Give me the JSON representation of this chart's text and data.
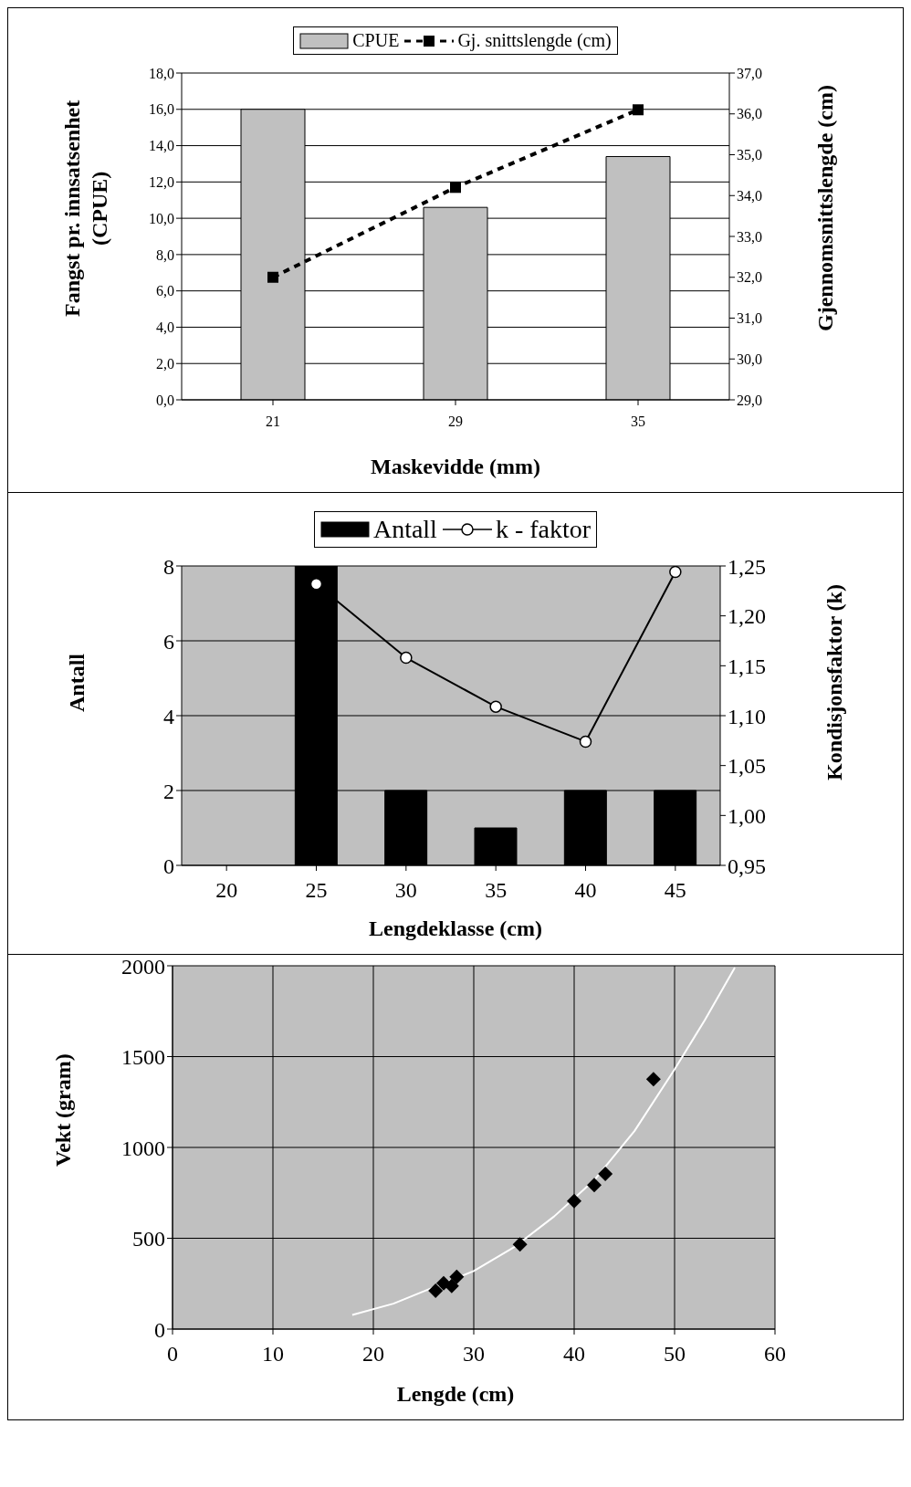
{
  "chart_data": [
    {
      "type": "bar",
      "categories": [
        "21",
        "29",
        "35"
      ],
      "xlabel": "Maskevidde (mm)",
      "ylabel": "Fangst pr. innsatsenhet (CPUE)",
      "y2label": "Gjennomsnittslengde (cm)",
      "series": [
        {
          "name": "CPUE",
          "color": "#c0c0c0",
          "values": [
            16.0,
            10.6,
            13.4
          ]
        },
        {
          "name": "Gj. snittslengde (cm)",
          "type": "line",
          "axis": "y2",
          "color": "#000000",
          "marker": "square",
          "line_style": "dashed",
          "values": [
            32.0,
            34.2,
            36.1
          ]
        }
      ],
      "ylim": [
        0,
        18
      ],
      "yticks": [
        {
          "value": 0,
          "label": "0,0"
        },
        {
          "value": 2,
          "label": "2,0"
        },
        {
          "value": 4,
          "label": "4,0"
        },
        {
          "value": 6,
          "label": "6,0"
        },
        {
          "value": 8,
          "label": "8,0"
        },
        {
          "value": 10,
          "label": "10,0"
        },
        {
          "value": 12,
          "label": "12,0"
        },
        {
          "value": 14,
          "label": "14,0"
        },
        {
          "value": 16,
          "label": "16,0"
        },
        {
          "value": 18,
          "label": "18,0"
        }
      ],
      "y2lim": [
        29,
        37
      ],
      "y2ticks": [
        {
          "value": 29,
          "label": "29,0"
        },
        {
          "value": 30,
          "label": "30,0"
        },
        {
          "value": 31,
          "label": "31,0"
        },
        {
          "value": 32,
          "label": "32,0"
        },
        {
          "value": 33,
          "label": "33,0"
        },
        {
          "value": 34,
          "label": "34,0"
        },
        {
          "value": 35,
          "label": "35,0"
        },
        {
          "value": 36,
          "label": "36,0"
        },
        {
          "value": 37,
          "label": "37,0"
        }
      ],
      "grid": "y",
      "legend": "top"
    },
    {
      "type": "bar",
      "categories": [
        "20",
        "25",
        "30",
        "35",
        "40",
        "45"
      ],
      "xlabel": "Lengdeklasse (cm)",
      "ylabel": "Antall",
      "y2label": "Kondisjonsfaktor (k)",
      "series": [
        {
          "name": "Antall",
          "color": "#000000",
          "values": [
            null,
            8,
            2,
            1,
            2,
            2
          ]
        },
        {
          "name": "k - faktor",
          "type": "line",
          "axis": "y2",
          "color": "#000000",
          "marker": "circle",
          "line_style": "solid",
          "values": [
            null,
            1.232,
            1.158,
            1.109,
            1.074,
            1.244
          ]
        }
      ],
      "ylim": [
        0,
        8
      ],
      "yticks": [
        0,
        2,
        4,
        6,
        8
      ],
      "y2lim": [
        0.95,
        1.25
      ],
      "y2ticks": [
        {
          "value": 0.95,
          "label": "0,95"
        },
        {
          "value": 1.0,
          "label": "1,00"
        },
        {
          "value": 1.05,
          "label": "1,05"
        },
        {
          "value": 1.1,
          "label": "1,10"
        },
        {
          "value": 1.15,
          "label": "1,15"
        },
        {
          "value": 1.2,
          "label": "1,20"
        },
        {
          "value": 1.25,
          "label": "1,25"
        }
      ],
      "grid": "y",
      "legend": "top"
    },
    {
      "type": "scatter",
      "xlabel": "Lengde (cm)",
      "ylabel": "Vekt (gram)",
      "series": [
        {
          "color": "#000000",
          "marker": "diamond",
          "x": [
            26.2,
            27.0,
            27.8,
            28.3,
            34.6,
            40.0,
            42.0,
            43.1,
            47.9
          ],
          "values": [
            211,
            252,
            238,
            288,
            466,
            705,
            793,
            854,
            1376
          ]
        },
        {
          "type": "line",
          "color": "#ffffff",
          "marker": "none",
          "line_style": "solid",
          "x": [
            17.9,
            22,
            30,
            34,
            38,
            42,
            46,
            50,
            53,
            56
          ],
          "values": [
            78,
            140,
            320,
            450,
            620,
            820,
            1090,
            1430,
            1700,
            1990
          ]
        }
      ],
      "xlim": [
        0,
        60
      ],
      "xticks": [
        0,
        10,
        20,
        30,
        40,
        50,
        60
      ],
      "ylim": [
        0,
        2000
      ],
      "yticks": [
        0,
        500,
        1000,
        1500,
        2000
      ],
      "grid": true
    }
  ]
}
